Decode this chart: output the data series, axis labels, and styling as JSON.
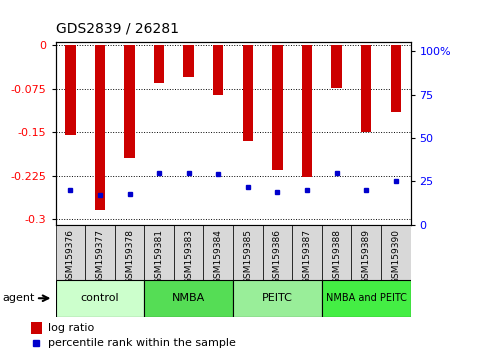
{
  "title": "GDS2839 / 26281",
  "samples": [
    "GSM159376",
    "GSM159377",
    "GSM159378",
    "GSM159381",
    "GSM159383",
    "GSM159384",
    "GSM159385",
    "GSM159386",
    "GSM159387",
    "GSM159388",
    "GSM159389",
    "GSM159390"
  ],
  "log_ratio": [
    -0.155,
    -0.285,
    -0.195,
    -0.065,
    -0.055,
    -0.085,
    -0.165,
    -0.215,
    -0.228,
    -0.073,
    -0.15,
    -0.115
  ],
  "percentile_rank": [
    20,
    17,
    18,
    30,
    30,
    29,
    22,
    19,
    20,
    30,
    20,
    25
  ],
  "groups": [
    {
      "label": "control",
      "start": 0,
      "end": 3,
      "color": "#ccffcc"
    },
    {
      "label": "NMBA",
      "start": 3,
      "end": 6,
      "color": "#55dd55"
    },
    {
      "label": "PEITC",
      "start": 6,
      "end": 9,
      "color": "#99ee99"
    },
    {
      "label": "NMBA and PEITC",
      "start": 9,
      "end": 12,
      "color": "#44ee44"
    }
  ],
  "ylim_left": [
    -0.31,
    0.005
  ],
  "ylim_right": [
    0,
    105
  ],
  "yticks_left": [
    0,
    -0.075,
    -0.15,
    -0.225,
    -0.3
  ],
  "yticks_right": [
    0,
    25,
    50,
    75,
    100
  ],
  "bar_color": "#cc0000",
  "percentile_color": "#0000cc",
  "background_color": "#ffffff",
  "bar_width": 0.35,
  "agent_label": "agent"
}
